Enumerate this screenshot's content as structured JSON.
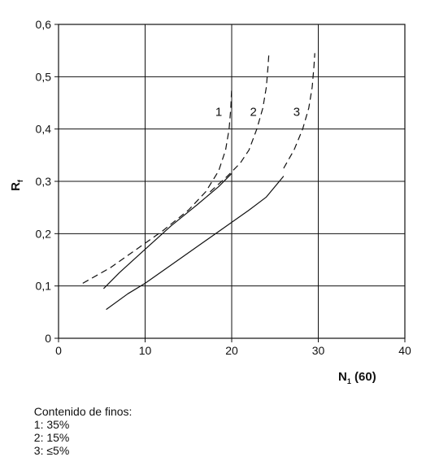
{
  "chart_data": {
    "type": "line",
    "xlim": [
      0,
      40
    ],
    "ylim": [
      0,
      0.6
    ],
    "x_ticks": [
      "0",
      "10",
      "20",
      "30",
      "40"
    ],
    "y_ticks": [
      "0",
      "0,1",
      "0,2",
      "0,3",
      "0,4",
      "0,5",
      "0,6"
    ],
    "xlabel": {
      "main": "N",
      "sub": "1",
      "suffix": " (60)"
    },
    "ylabel": {
      "main": "R",
      "sub": "f"
    },
    "grid": true,
    "series": [
      {
        "name": "1",
        "style": "dashed",
        "label_at": [
          18.5,
          0.425
        ],
        "points": [
          [
            2.8,
            0.105
          ],
          [
            6,
            0.135
          ],
          [
            9,
            0.17
          ],
          [
            12,
            0.205
          ],
          [
            15,
            0.245
          ],
          [
            17,
            0.28
          ],
          [
            18.5,
            0.32
          ],
          [
            19.3,
            0.36
          ],
          [
            19.7,
            0.4
          ],
          [
            19.9,
            0.44
          ],
          [
            20,
            0.48
          ]
        ]
      },
      {
        "name": "2",
        "style": "dashed",
        "label_at": [
          22.5,
          0.425
        ],
        "points": [
          [
            17.5,
            0.28
          ],
          [
            19.5,
            0.31
          ],
          [
            21,
            0.335
          ],
          [
            22,
            0.36
          ],
          [
            22.9,
            0.4
          ],
          [
            23.6,
            0.44
          ],
          [
            24,
            0.48
          ],
          [
            24.2,
            0.52
          ],
          [
            24.3,
            0.545
          ]
        ]
      },
      {
        "name": "3",
        "style": "dashed",
        "label_at": [
          27.5,
          0.425
        ],
        "points": [
          [
            26,
            0.325
          ],
          [
            27.2,
            0.36
          ],
          [
            28.2,
            0.4
          ],
          [
            28.9,
            0.44
          ],
          [
            29.3,
            0.48
          ],
          [
            29.5,
            0.52
          ],
          [
            29.6,
            0.545
          ]
        ]
      },
      {
        "name": "1",
        "style": "solid",
        "points": [
          [
            5.2,
            0.095
          ],
          [
            7,
            0.125
          ],
          [
            10,
            0.17
          ],
          [
            13,
            0.215
          ],
          [
            16,
            0.255
          ],
          [
            18.5,
            0.29
          ],
          [
            20,
            0.315
          ]
        ]
      },
      {
        "name": "2",
        "style": "solid",
        "points": [
          [
            5.5,
            0.055
          ],
          [
            8,
            0.085
          ],
          [
            10,
            0.105
          ],
          [
            13,
            0.14
          ],
          [
            16,
            0.175
          ],
          [
            19,
            0.21
          ],
          [
            22,
            0.245
          ],
          [
            24,
            0.27
          ],
          [
            26,
            0.31
          ]
        ]
      }
    ]
  },
  "footnote": {
    "title": "Contenido de finos:",
    "items": [
      "1: 35%",
      "2: 15%",
      "3: ≤5%"
    ]
  }
}
